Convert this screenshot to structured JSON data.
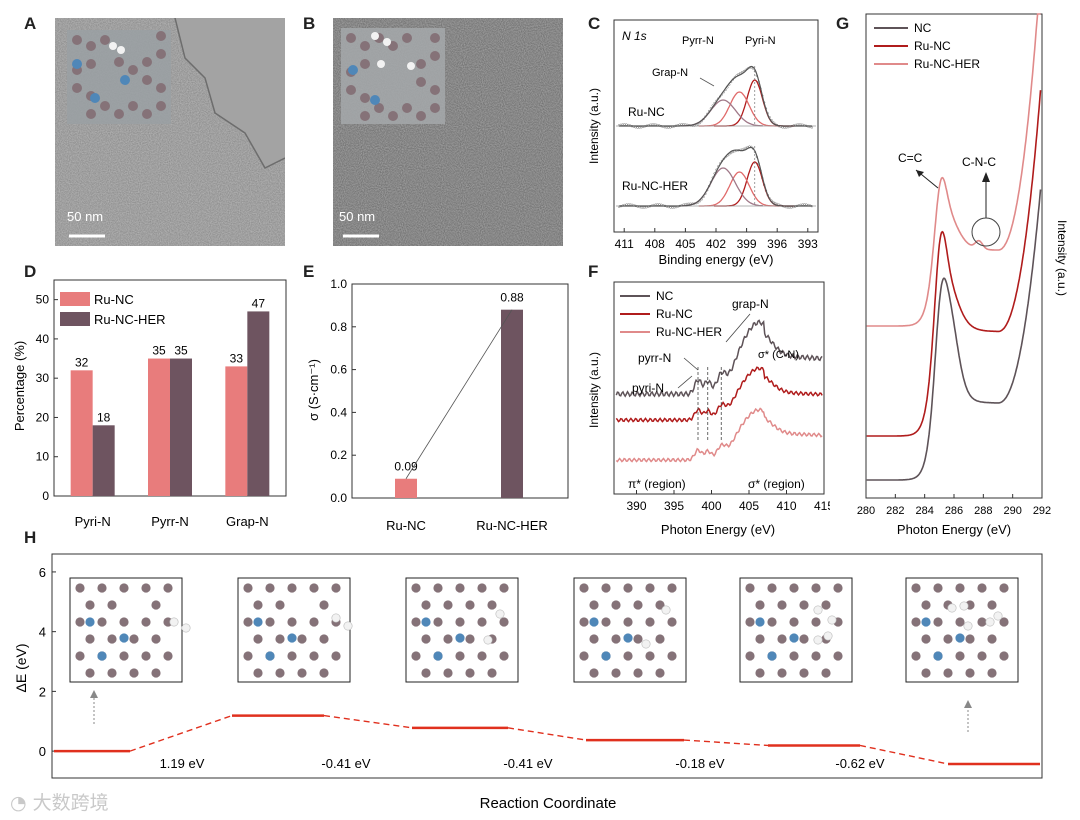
{
  "panels": {
    "A": {
      "label": "A",
      "scale": "50 nm"
    },
    "B": {
      "label": "B",
      "scale": "50 nm"
    },
    "C": {
      "label": "C"
    },
    "D": {
      "label": "D"
    },
    "E": {
      "label": "E"
    },
    "F": {
      "label": "F"
    },
    "G": {
      "label": "G"
    },
    "H": {
      "label": "H"
    }
  },
  "colors": {
    "nc": "#5e5358",
    "runc": "#b01c1c",
    "runcher": "#e08a8a",
    "bar_runc": "#e87c7c",
    "bar_runcher": "#6e5460",
    "h_line": "#e0301e",
    "atom_c": "#857278",
    "atom_n": "#4f87b8",
    "atom_h": "#f2f2f2"
  },
  "chart_data": [
    {
      "id": "C",
      "type": "line",
      "title": "N 1s",
      "xlabel": "Binding energy (eV)",
      "ylabel": "Intensity (a.u.)",
      "xlim": [
        412,
        392
      ],
      "xticks": [
        411,
        408,
        405,
        402,
        399,
        396,
        393
      ],
      "series": [
        {
          "name": "Ru-NC"
        },
        {
          "name": "Ru-NC-HER"
        }
      ],
      "peak_labels": [
        "Pyrr-N",
        "Pyri-N",
        "Grap-N"
      ],
      "peaks_eV": {
        "Pyri-N": 398.2,
        "Pyrr-N": 399.7,
        "Grap-N": 401.3
      }
    },
    {
      "id": "D",
      "type": "bar",
      "ylabel": "Percentage (%)",
      "ylim": [
        0,
        55
      ],
      "yticks": [
        0,
        10,
        20,
        30,
        40,
        50
      ],
      "categories": [
        "Pyri-N",
        "Pyrr-N",
        "Grap-N"
      ],
      "series": [
        {
          "name": "Ru-NC",
          "values": [
            32,
            35,
            33
          ]
        },
        {
          "name": "Ru-NC-HER",
          "values": [
            18,
            35,
            47
          ]
        }
      ]
    },
    {
      "id": "E",
      "type": "bar",
      "ylabel": "σ (S·cm⁻¹)",
      "ylim": [
        0,
        1.0
      ],
      "yticks": [
        "0.0",
        "0.2",
        "0.4",
        "0.6",
        "0.8",
        "1.0"
      ],
      "categories": [
        "Ru-NC",
        "Ru-NC-HER"
      ],
      "values": [
        0.09,
        0.88
      ],
      "value_labels": [
        "0.09",
        "0.88"
      ]
    },
    {
      "id": "F",
      "type": "line",
      "xlabel": "Photon Energy (eV)",
      "ylabel": "Intensity (a.u.)",
      "xlim": [
        387,
        415
      ],
      "xticks": [
        390,
        395,
        400,
        405,
        410,
        415
      ],
      "series": [
        {
          "name": "NC"
        },
        {
          "name": "Ru-NC"
        },
        {
          "name": "Ru-NC-HER"
        }
      ],
      "annotations": [
        "grap-N",
        "pyrr-N",
        "pyri-N",
        "σ* (C-N)",
        "π* (region)",
        "σ* (region)"
      ]
    },
    {
      "id": "G",
      "type": "line",
      "xlabel": "Photon Energy (eV)",
      "ylabel": "Intensity (a.u.)",
      "xlim": [
        280,
        292
      ],
      "xticks": [
        280,
        282,
        284,
        286,
        288,
        290,
        292
      ],
      "series": [
        {
          "name": "NC"
        },
        {
          "name": "Ru-NC"
        },
        {
          "name": "Ru-NC-HER"
        }
      ],
      "annotations": [
        "C=C",
        "C-N-C"
      ]
    },
    {
      "id": "H",
      "type": "line",
      "xlabel": "Reaction Coordinate",
      "ylabel": "ΔE (eV)",
      "ylim": [
        -0.9,
        6.6
      ],
      "yticks": [
        0,
        2,
        4,
        6
      ],
      "levels": [
        0,
        1.19,
        0.78,
        0.37,
        0.19,
        -0.43
      ],
      "step_labels": [
        "1.19 eV",
        "-0.41 eV",
        "-0.41 eV",
        "-0.18 eV",
        "-0.62 eV"
      ]
    }
  ],
  "watermark": "大数跨境"
}
